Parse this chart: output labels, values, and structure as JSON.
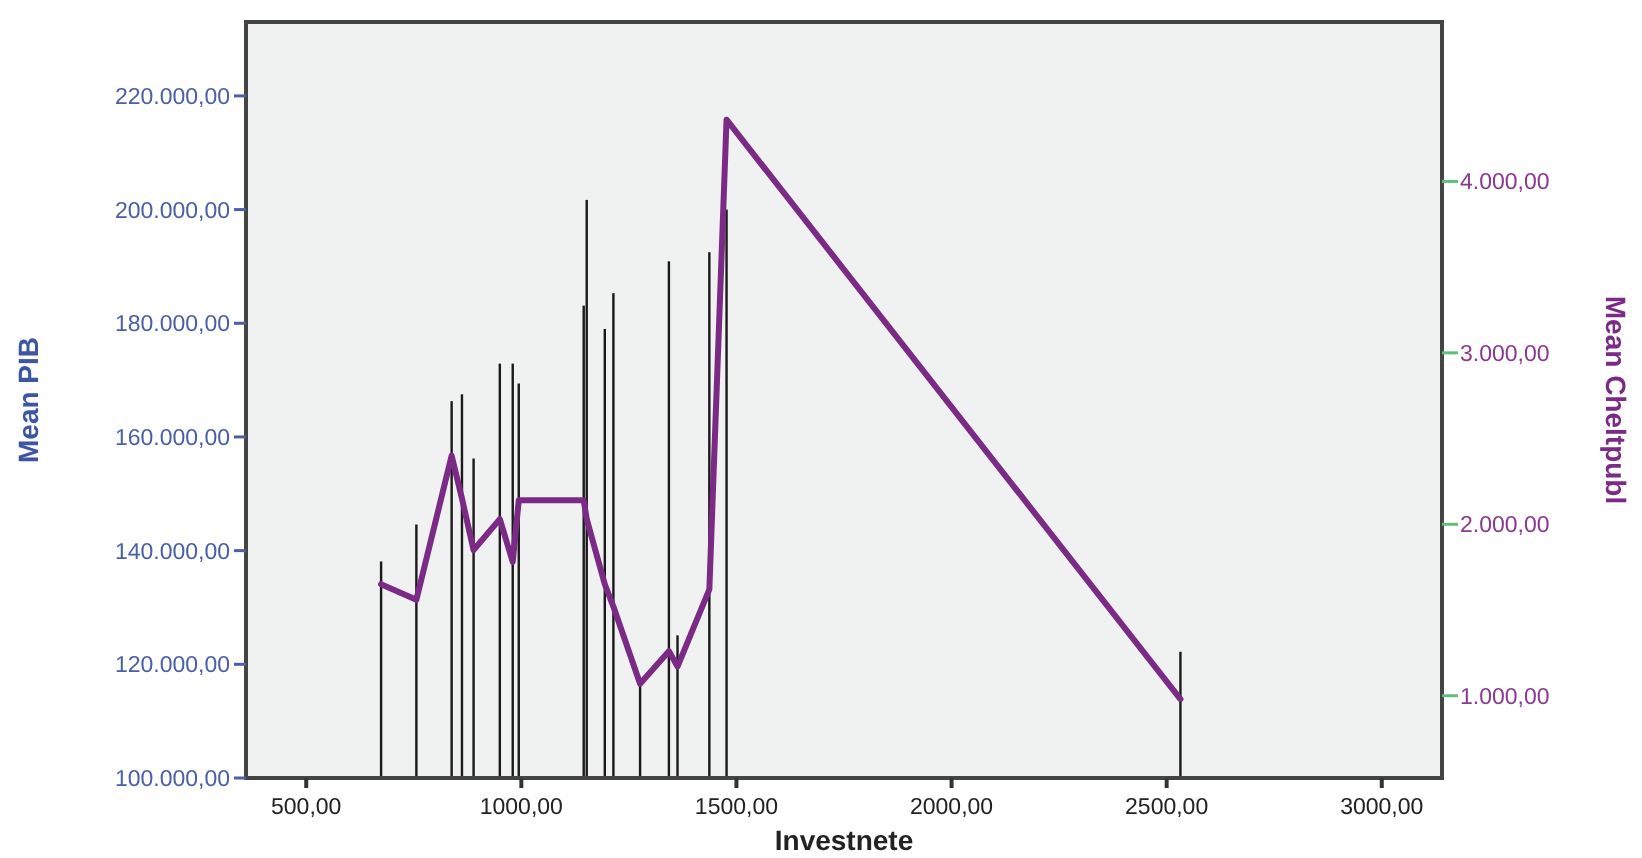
{
  "chart_data": {
    "type": "bar",
    "xlabel": "Investnete",
    "ylabel": "Mean PIB",
    "y2label": "Mean Cheltpubl",
    "x": [
      674,
      756,
      838,
      862,
      889,
      950,
      980,
      994,
      1145,
      1152,
      1194,
      1214,
      1276,
      1343,
      1363,
      1437,
      1477,
      2532
    ],
    "series": [
      {
        "color": "#1a1a1a",
        "values": [
          138100,
          144600,
          166300,
          167500,
          156200,
          172900,
          172900,
          169400,
          183100,
          201700,
          179000,
          185300,
          116500,
          190900,
          125100,
          192500,
          200000,
          122200
        ]
      },
      {
        "type": "line",
        "axis": "y2",
        "color": "#7b2a86",
        "values": [
          1650,
          1560,
          2400,
          2150,
          1850,
          2030,
          1780,
          2140,
          2140,
          2030,
          1650,
          1520,
          1070,
          1260,
          1170,
          1620,
          4360,
          980
        ]
      }
    ],
    "xlim": [
      360,
      3140
    ],
    "xticks": [
      {
        "value": 500,
        "label": "500,00"
      },
      {
        "value": 1000,
        "label": "1000,00"
      },
      {
        "value": 1500,
        "label": "1500,00"
      },
      {
        "value": 2000,
        "label": "2000,00"
      },
      {
        "value": 2500,
        "label": "2500,00"
      },
      {
        "value": 3000,
        "label": "3000,00"
      }
    ],
    "ylim": [
      100000,
      233000
    ],
    "yticks": [
      {
        "value": 100000,
        "label": "100.000,00"
      },
      {
        "value": 120000,
        "label": "120.000,00"
      },
      {
        "value": 140000,
        "label": "140.000,00"
      },
      {
        "value": 160000,
        "label": "160.000,00"
      },
      {
        "value": 180000,
        "label": "180.000,00"
      },
      {
        "value": 200000,
        "label": "200.000,00"
      },
      {
        "value": 220000,
        "label": "220.000,00"
      }
    ],
    "y2lim": [
      520,
      4930
    ],
    "y2ticks": [
      {
        "value": 1000,
        "label": "1.000,00"
      },
      {
        "value": 2000,
        "label": "2.000,00"
      },
      {
        "value": 3000,
        "label": "3.000,00"
      },
      {
        "value": 4000,
        "label": "4.000,00"
      }
    ],
    "grid": false,
    "line_style": "solid",
    "marker": "none"
  }
}
